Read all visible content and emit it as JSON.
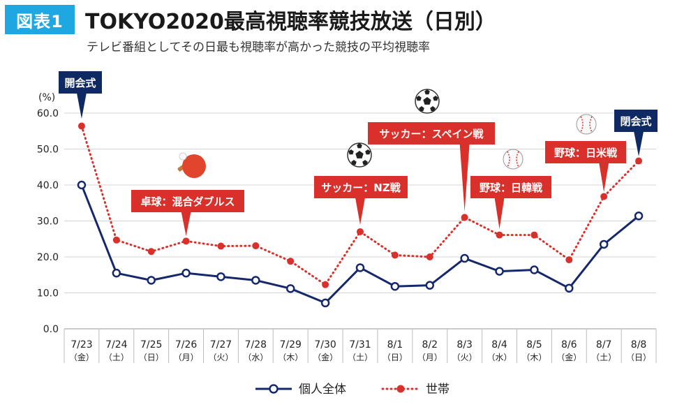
{
  "header": {
    "badge": "図表1",
    "title": "TOKYO2020最高視聴率競技放送（日別）",
    "subtitle": "テレビ番組としてその日最も視聴率が高かった競技の平均視聴率"
  },
  "colors": {
    "individual": "#15286b",
    "household": "#d9302b",
    "navy_label": "#0f2a63",
    "red_label": "#d9302b",
    "badge": "#1ea7e0"
  },
  "chart_data": {
    "type": "line",
    "ylabel": "(%)",
    "ylim": [
      0,
      60
    ],
    "yticks": [
      "0.0",
      "10.0",
      "20.0",
      "30.0",
      "40.0",
      "50.0",
      "60.0"
    ],
    "categories": [
      "7/23",
      "7/24",
      "7/25",
      "7/26",
      "7/27",
      "7/28",
      "7/29",
      "7/30",
      "7/31",
      "8/1",
      "8/2",
      "8/3",
      "8/4",
      "8/5",
      "8/6",
      "8/7",
      "8/8"
    ],
    "weekdays": [
      "（金）",
      "（土）",
      "（日）",
      "（月）",
      "（火）",
      "（水）",
      "（木）",
      "（金）",
      "（土）",
      "（日）",
      "（月）",
      "（火）",
      "（水）",
      "（木）",
      "（金）",
      "（土）",
      "（日）"
    ],
    "series": [
      {
        "name": "個人全体",
        "style": "solid",
        "values": [
          40.0,
          15.5,
          13.5,
          15.5,
          14.5,
          13.5,
          11.2,
          7.2,
          17.0,
          11.8,
          12.1,
          19.6,
          16.0,
          16.4,
          11.3,
          23.5,
          31.4
        ]
      },
      {
        "name": "世帯",
        "style": "dotted",
        "values": [
          56.4,
          24.7,
          21.5,
          24.4,
          23.0,
          23.1,
          18.8,
          12.3,
          27.0,
          20.5,
          20.0,
          31.0,
          26.1,
          26.1,
          19.2,
          36.8,
          46.7
        ]
      }
    ],
    "legend": [
      "個人全体",
      "世帯"
    ],
    "annotations": [
      {
        "label": "開会式",
        "index": 0,
        "color": "navy",
        "icon": ""
      },
      {
        "label": "卓球：混合ダブルス",
        "index": 3,
        "color": "red",
        "icon": "table-tennis"
      },
      {
        "label": "サッカー：NZ戦",
        "index": 8,
        "color": "red",
        "icon": "soccer"
      },
      {
        "label": "サッカー：スペイン戦",
        "index": 11,
        "color": "red",
        "icon": "soccer"
      },
      {
        "label": "野球：日韓戦",
        "index": 12,
        "color": "red",
        "icon": "baseball"
      },
      {
        "label": "野球：日米戦",
        "index": 15,
        "color": "red",
        "icon": "baseball"
      },
      {
        "label": "閉会式",
        "index": 16,
        "color": "navy",
        "icon": ""
      }
    ]
  }
}
